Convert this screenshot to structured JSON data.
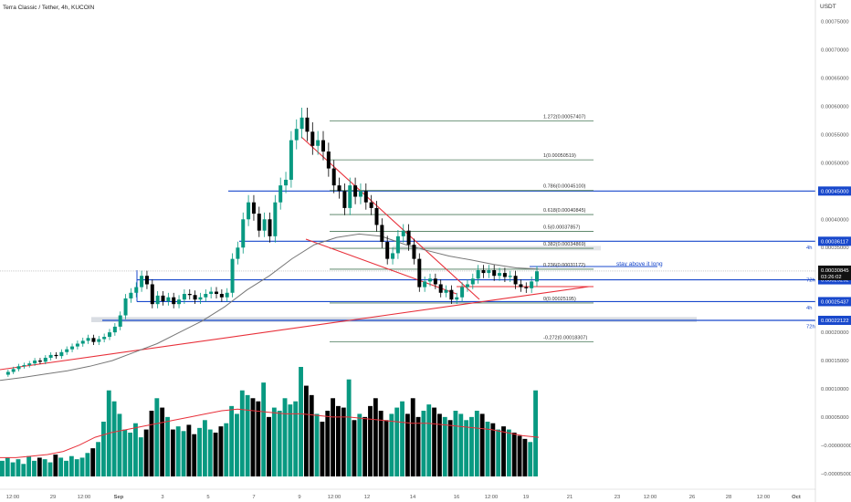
{
  "header": {
    "title": "Terra Classic / Tether, 4h, KUCOIN",
    "currency": "USDT"
  },
  "colors": {
    "up": "#089981",
    "down": "#000000",
    "fib": "#4a7a5a",
    "level": "#1848cc",
    "trend": "#e8303a",
    "ma": "#777777",
    "volma": "#e8303a",
    "axis": "#555555",
    "tag": "#1848cc",
    "zone": "#d9dde3"
  },
  "price_axis": {
    "ticks": [
      "0.00075000",
      "0.00070000",
      "0.00065000",
      "0.00060000",
      "0.00055000",
      "0.00050000",
      "0.00045000",
      "0.00040000",
      "0.00035000",
      "0.00030000",
      "0.00025000",
      "0.00020000",
      "0.00015000",
      "0.00010000",
      "0.00005000",
      "−0.00000000",
      "−0.00005000"
    ],
    "current_price": "0.00030845",
    "countdown": "03:26:02"
  },
  "price_tags": [
    {
      "value": "0.00045000",
      "price": 0.00045
    },
    {
      "value": "0.00036117",
      "price": 0.00036117
    },
    {
      "value": "0.00029292",
      "price": 0.00029292
    },
    {
      "value": "0.00025437",
      "price": 0.00025437
    },
    {
      "value": "0.00022122",
      "price": 0.00022122
    }
  ],
  "time_axis": {
    "labels": [
      "12:00",
      "29",
      "12:00",
      "Sep",
      "3",
      "5",
      "7",
      "9",
      "12:00",
      "12",
      "14",
      "16",
      "12:00",
      "19",
      "21",
      "23",
      "12:00",
      "26",
      "28",
      "12:00",
      "Oct"
    ]
  },
  "timeframe_labels": [
    {
      "text": "4h",
      "price": 0.00035
    },
    {
      "text": "72h",
      "price": 0.00029292
    },
    {
      "text": "4h",
      "price": 0.0002435
    },
    {
      "text": "72h",
      "price": 0.0002105
    }
  ],
  "fib_levels": [
    {
      "label": "1.272(0.00057407)",
      "price": 0.00057407
    },
    {
      "label": "1(0.00050519)",
      "price": 0.00050519
    },
    {
      "label": "0.786(0.00045100)",
      "price": 0.000451
    },
    {
      "label": "0.618(0.00040845)",
      "price": 0.00040845
    },
    {
      "label": "0.5(0.00037857)",
      "price": 0.00037857
    },
    {
      "label": "0.382(0.00034869)",
      "price": 0.00034869
    },
    {
      "label": "0.236(0.00031172)",
      "price": 0.00031172
    },
    {
      "label": "0(0.00025195)",
      "price": 0.00025195
    },
    {
      "label": "-0.272(0.00018307)",
      "price": 0.00018307
    }
  ],
  "annotation": "stay above it long",
  "chart_data": {
    "type": "candlestick",
    "title": "Terra Classic / Tether, 4h, KUCOIN",
    "ylabel": "USDT",
    "ylim": [
      -5.5e-05,
      0.00078
    ],
    "current_price": 0.00030845,
    "series": [
      {
        "name": "price",
        "values": [
          0.000125,
          0.00013,
          0.000135,
          0.00014,
          0.000142,
          0.000145,
          0.00015,
          0.000148,
          0.000155,
          0.00016,
          0.000158,
          0.000165,
          0.00017,
          0.000175,
          0.00018,
          0.000185,
          0.00019,
          0.000183,
          0.000188,
          0.000192,
          0.0002,
          0.00021,
          0.00023,
          0.00026,
          0.00027,
          0.00028,
          0.0003,
          0.000285,
          0.00025,
          0.000265,
          0.000255,
          0.000262,
          0.00025,
          0.000258,
          0.000268,
          0.000266,
          0.000258,
          0.000262,
          0.000268,
          0.000272,
          0.000268,
          0.000262,
          0.00027,
          0.00033,
          0.00035,
          0.0004,
          0.00043,
          0.00041,
          0.00038,
          0.0004,
          0.00037,
          0.00043,
          0.00046,
          0.00047,
          0.00054,
          0.00056,
          0.00058,
          0.000555,
          0.00053,
          0.00054,
          0.00052,
          0.00049,
          0.00046,
          0.00045,
          0.00042,
          0.00046,
          0.00044,
          0.00045,
          0.00043,
          0.00042,
          0.00039,
          0.00036,
          0.00033,
          0.00034,
          0.00037,
          0.00038,
          0.000355,
          0.00033,
          0.00028,
          0.00029,
          0.000295,
          0.000285,
          0.00027,
          0.000275,
          0.000258,
          0.000262,
          0.00028,
          0.000285,
          0.000295,
          0.00031,
          0.000305,
          0.00031,
          0.0003,
          0.000305,
          0.000298,
          0.0003,
          0.000285,
          0.00028,
          0.000278,
          0.00029,
          0.000308
        ]
      },
      {
        "name": "ma",
        "values": [
          0.000115,
          0.00012,
          0.000126,
          0.000132,
          0.00014,
          0.00015,
          0.000165,
          0.00018,
          0.0002,
          0.00022,
          0.000245,
          0.000275,
          0.0003,
          0.00033,
          0.000355,
          0.000368,
          0.000374,
          0.00037,
          0.000356,
          0.000345,
          0.000335,
          0.000328,
          0.00032,
          0.000314,
          0.000312
        ]
      },
      {
        "name": "volume",
        "values": [
          10,
          12,
          9,
          11,
          8,
          13,
          10,
          12,
          11,
          9,
          14,
          12,
          10,
          13,
          11,
          12,
          15,
          18,
          22,
          35,
          55,
          48,
          40,
          30,
          28,
          34,
          25,
          30,
          42,
          50,
          44,
          38,
          30,
          32,
          29,
          33,
          27,
          31,
          36,
          30,
          28,
          32,
          34,
          45,
          40,
          55,
          52,
          50,
          48,
          60,
          38,
          44,
          42,
          50,
          46,
          48,
          70,
          58,
          52,
          40,
          35,
          42,
          50,
          45,
          44,
          62,
          36,
          40,
          38,
          45,
          50,
          42,
          36,
          40,
          44,
          48,
          40,
          50,
          38,
          42,
          46,
          44,
          40,
          38,
          36,
          42,
          40,
          36,
          38,
          42,
          40,
          35,
          34,
          30,
          32,
          30,
          28,
          26,
          24,
          22,
          55
        ]
      },
      {
        "name": "volume_ma",
        "values": [
          12,
          12,
          13,
          14,
          16,
          20,
          25,
          28,
          30,
          32,
          34,
          36,
          38,
          40,
          42,
          43,
          42,
          41,
          40,
          40,
          39,
          38,
          38,
          37,
          36,
          35,
          34,
          34,
          33,
          32,
          31,
          30,
          28,
          26,
          25
        ]
      }
    ]
  }
}
